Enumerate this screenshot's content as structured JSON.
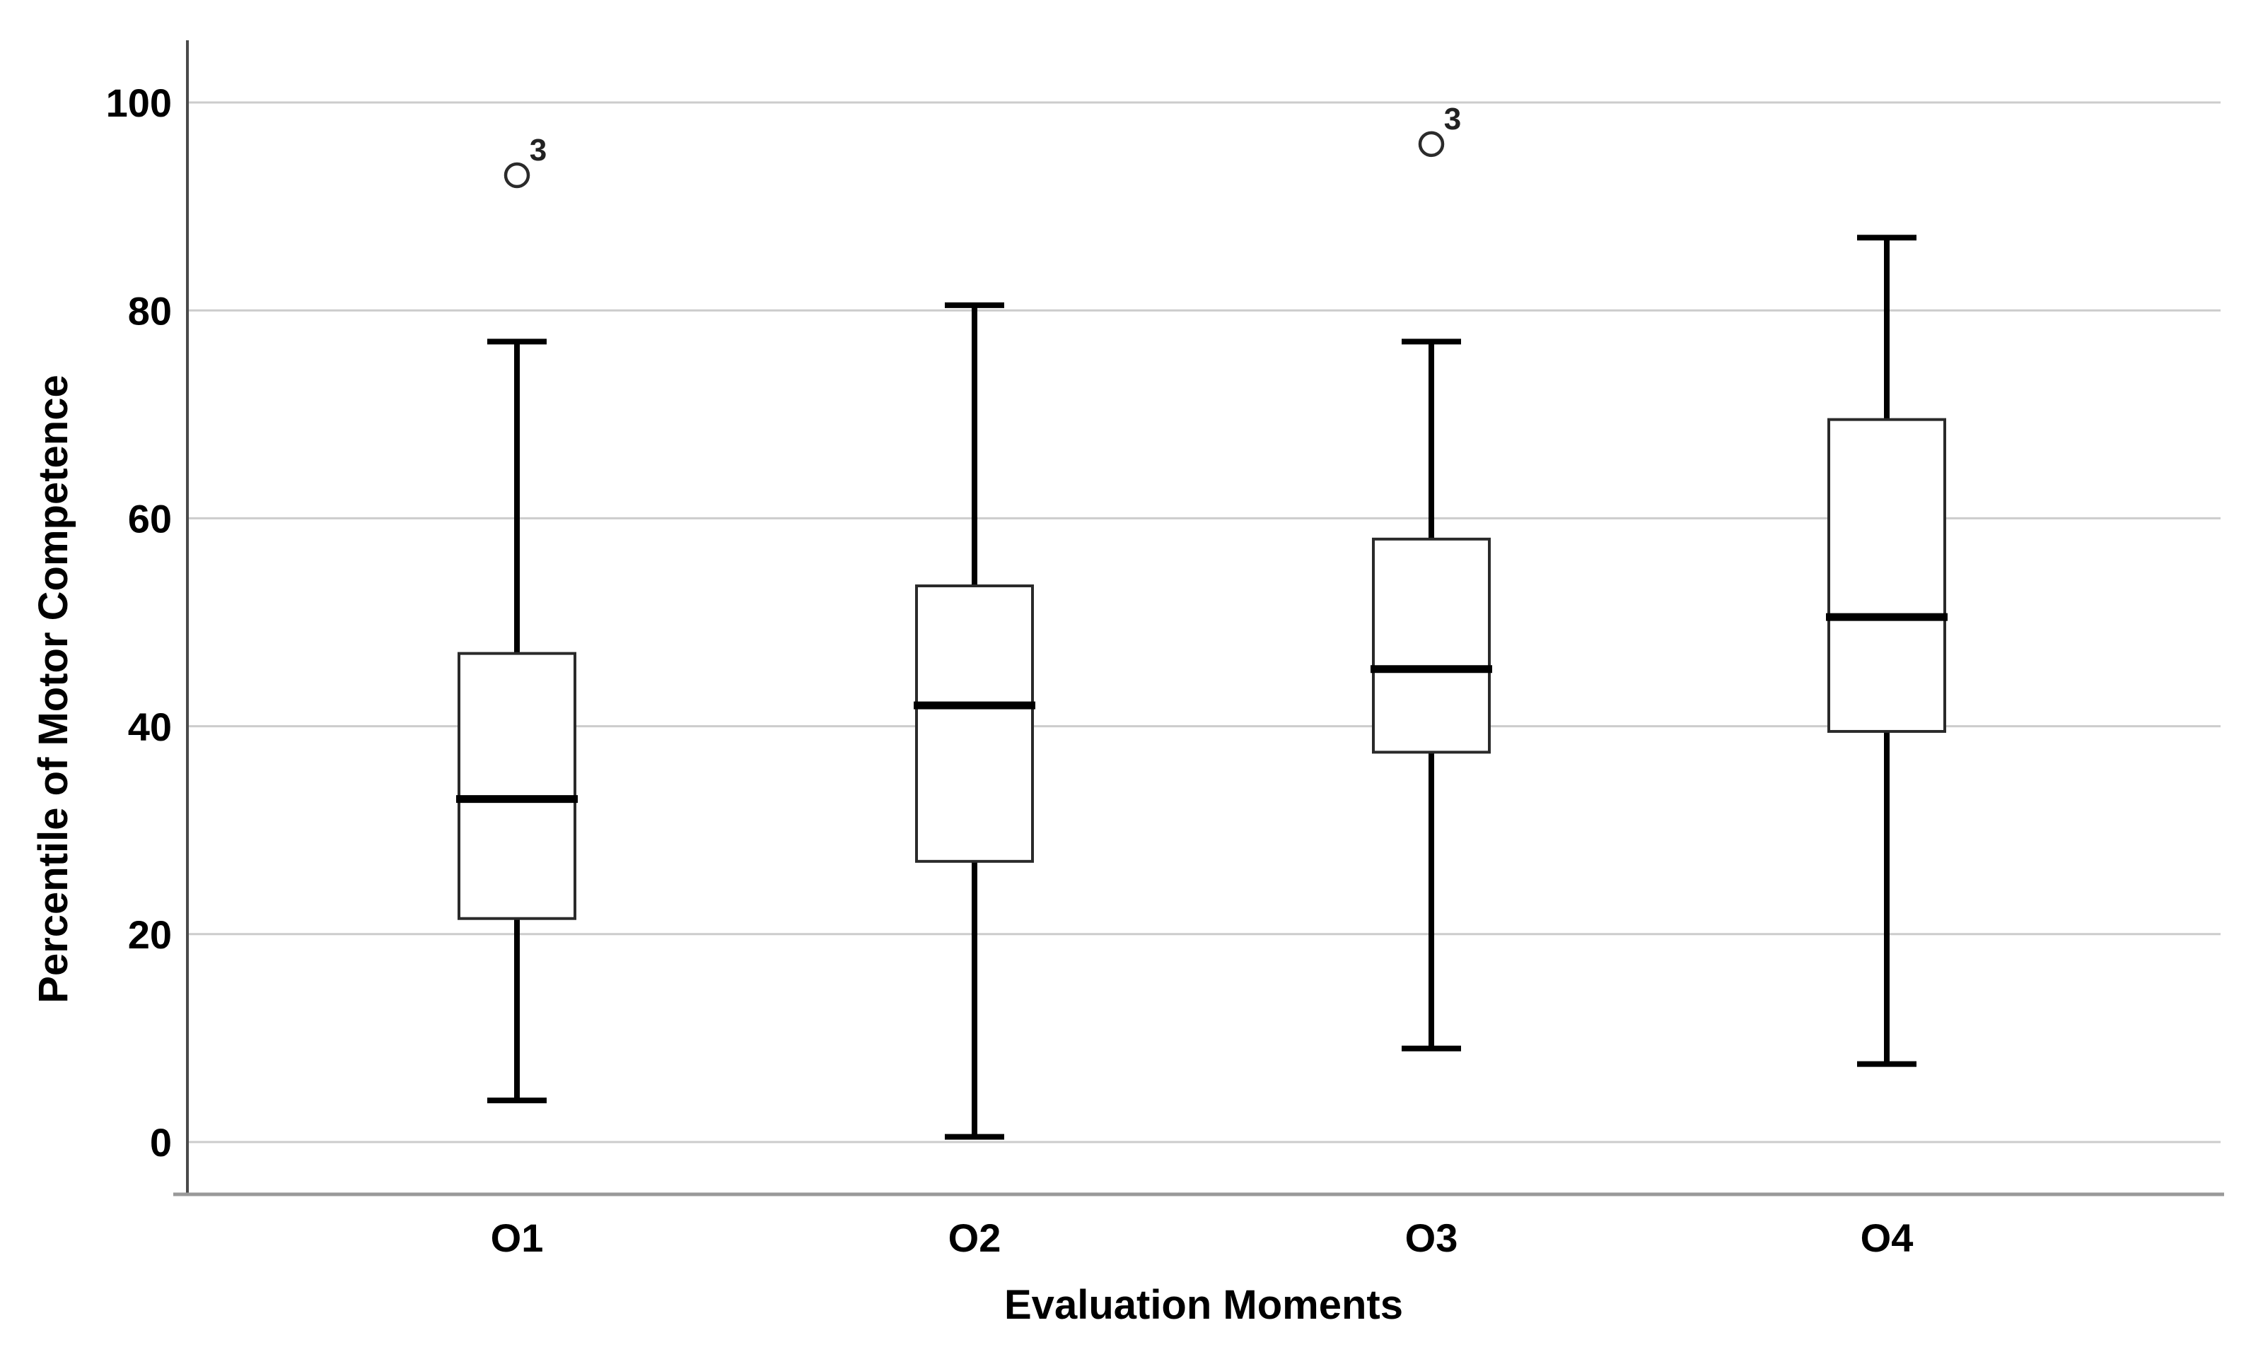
{
  "page": {
    "background": "#ffffff"
  },
  "chart_data": {
    "type": "boxplot",
    "title": "",
    "xlabel": "Evaluation Moments",
    "ylabel": "Percentile of Motor Competence",
    "categories": [
      "O1",
      "O2",
      "O3",
      "O4"
    ],
    "ylim": [
      0,
      100
    ],
    "yticks": [
      0,
      20,
      40,
      60,
      80,
      100
    ],
    "grid": "horizontal light-gray gridlines, no top or right frame",
    "legend": "none",
    "series": [
      {
        "category": "O1",
        "min": 4,
        "q1": 21.5,
        "median": 33,
        "q3": 47,
        "max": 77,
        "outliers": [
          {
            "value": 93,
            "label": "3"
          }
        ]
      },
      {
        "category": "O2",
        "min": 0.5,
        "q1": 27,
        "median": 42,
        "q3": 53.5,
        "max": 80.5,
        "outliers": []
      },
      {
        "category": "O3",
        "min": 9,
        "q1": 37.5,
        "median": 45.5,
        "q3": 58,
        "max": 77,
        "outliers": [
          {
            "value": 96,
            "label": "3"
          }
        ]
      },
      {
        "category": "O4",
        "min": 7.5,
        "q1": 39.5,
        "median": 50.5,
        "q3": 69.5,
        "max": 87,
        "outliers": []
      }
    ],
    "colors": {
      "background": "#ffffff",
      "gridline": "#cccccc",
      "y_axis_line": "#4a4a4a",
      "x_frame_line": "#999999",
      "box_stroke": "#2a2a2a",
      "box_fill": "#ffffff",
      "median": "#000000",
      "whisker": "#000000",
      "outlier_marker": "#2b2b2b",
      "text": "#000000"
    }
  }
}
